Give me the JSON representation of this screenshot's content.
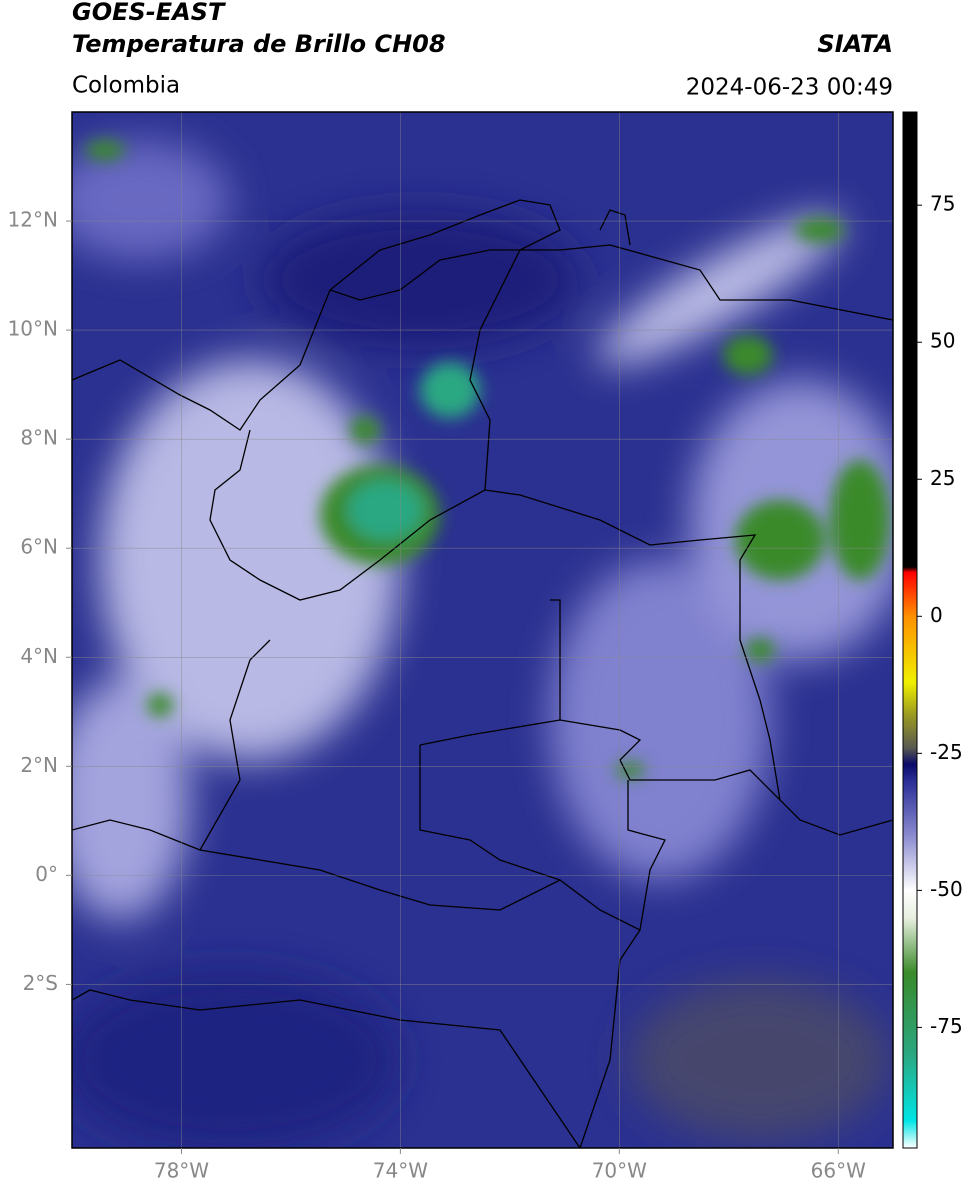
{
  "map": {
    "title_line1": "GOES-EAST",
    "title_line2": "Temperatura de Brillo CH08",
    "source": "SIATA",
    "region": "Colombia",
    "datetime": "2024-06-23 00:49",
    "xlim": [
      -80,
      -65
    ],
    "ylim": [
      -5,
      14
    ],
    "grid": true,
    "xticks": [
      {
        "value": -78,
        "label": "78°W"
      },
      {
        "value": -74,
        "label": "74°W"
      },
      {
        "value": -70,
        "label": "70°W"
      },
      {
        "value": -66,
        "label": "66°W"
      }
    ],
    "yticks": [
      {
        "value": 12,
        "label": "12°N"
      },
      {
        "value": 10,
        "label": "10°N"
      },
      {
        "value": 8,
        "label": "8°N"
      },
      {
        "value": 6,
        "label": "6°N"
      },
      {
        "value": 4,
        "label": "4°N"
      },
      {
        "value": 2,
        "label": "2°N"
      },
      {
        "value": 0,
        "label": "0°"
      },
      {
        "value": -2,
        "label": "2°S"
      }
    ],
    "colorbar": {
      "lim": [
        -97,
        92
      ],
      "ticks": [
        75,
        50,
        25,
        0,
        -25,
        -50,
        -75
      ],
      "stops": [
        {
          "value": -97,
          "color": "#ffffff"
        },
        {
          "value": -92,
          "color": "#00e5e5"
        },
        {
          "value": -80,
          "color": "#2aa882"
        },
        {
          "value": -65,
          "color": "#3a8a2a"
        },
        {
          "value": -55,
          "color": "#e8f0e0"
        },
        {
          "value": -50,
          "color": "#ffffff"
        },
        {
          "value": -40,
          "color": "#8a8ad0"
        },
        {
          "value": -30,
          "color": "#2a2e96"
        },
        {
          "value": -27,
          "color": "#0a0a6a"
        },
        {
          "value": -24,
          "color": "#5a5a50"
        },
        {
          "value": -18,
          "color": "#9a9a20"
        },
        {
          "value": -12,
          "color": "#f0f000"
        },
        {
          "value": 0,
          "color": "#ff9000"
        },
        {
          "value": 8,
          "color": "#ff0000"
        },
        {
          "value": 9,
          "color": "#000000"
        },
        {
          "value": 92,
          "color": "#000000"
        }
      ]
    }
  }
}
